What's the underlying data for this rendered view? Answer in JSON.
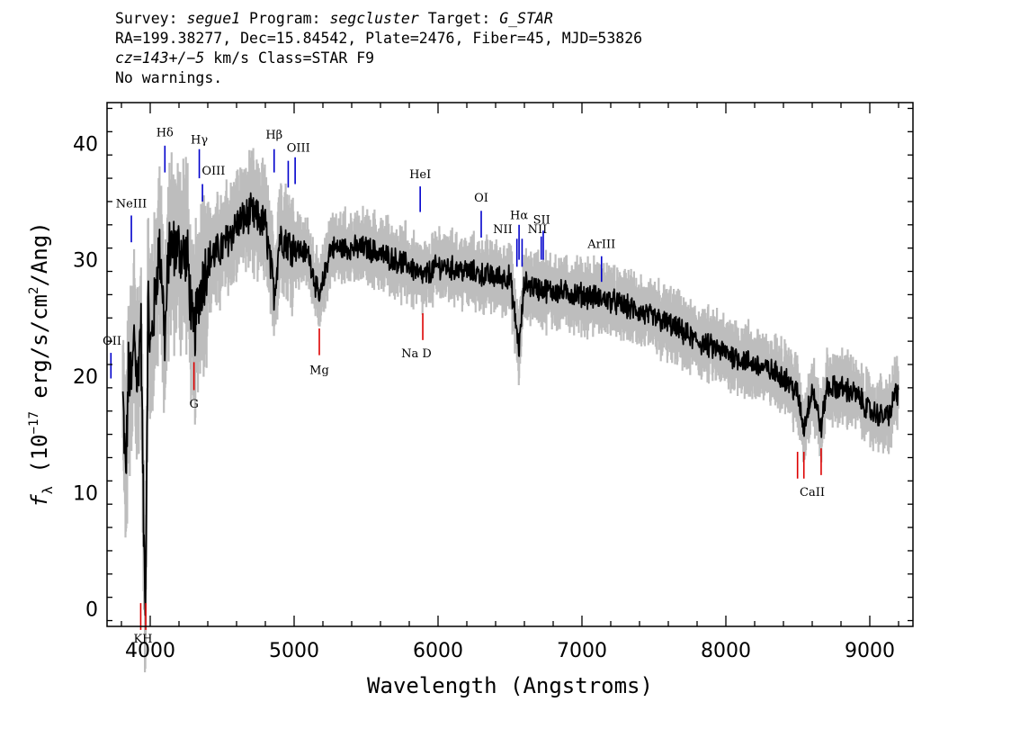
{
  "header": {
    "line1": {
      "survey_label": "Survey: ",
      "survey": "segue1",
      "program_label": " Program: ",
      "program": "segcluster",
      "target_label": " Target: ",
      "target": "G_STAR"
    },
    "line2": "RA=199.38277, Dec=15.84542, Plate=2476, Fiber=45, MJD=53826",
    "line3": {
      "cz": "cz=143+/−5",
      "rest": " km/s Class=STAR F9"
    },
    "line4": "No warnings."
  },
  "chart_data": {
    "type": "line",
    "xlabel": "Wavelength (Angstroms)",
    "ylabel": "f_λ (10^-17 erg/s/cm^2/Ang)",
    "ylabel_parts": {
      "f": "f",
      "lambda": "λ",
      "pre": " (10",
      "exp17": "−17",
      "mid": " erg/s/cm",
      "exp2": "2",
      "post": "/Ang)"
    },
    "xlim": [
      3700,
      9300
    ],
    "ylim": [
      -1.5,
      43.5
    ],
    "xticks": [
      4000,
      5000,
      6000,
      7000,
      8000,
      9000
    ],
    "yticks": [
      0,
      10,
      20,
      30,
      40
    ],
    "xtick_labels": [
      "4000",
      "5000",
      "6000",
      "7000",
      "8000",
      "9000"
    ],
    "ytick_labels": [
      "0",
      "10",
      "20",
      "30",
      "40"
    ],
    "colors": {
      "flux": "#000000",
      "error_band": "#bdbdbd",
      "emission": "#0000cc",
      "absorption": "#dd0000"
    },
    "spectrum_keypoints": [
      [
        3810,
        18
      ],
      [
        3830,
        11
      ],
      [
        3850,
        21
      ],
      [
        3870,
        19
      ],
      [
        3890,
        24
      ],
      [
        3910,
        19
      ],
      [
        3935,
        25
      ],
      [
        3955,
        6
      ],
      [
        3968,
        1
      ],
      [
        3985,
        27
      ],
      [
        4000,
        22
      ],
      [
        4030,
        26
      ],
      [
        4060,
        31
      ],
      [
        4080,
        29
      ],
      [
        4102,
        23
      ],
      [
        4130,
        31
      ],
      [
        4200,
        31
      ],
      [
        4260,
        30
      ],
      [
        4300,
        23
      ],
      [
        4340,
        27
      ],
      [
        4400,
        30
      ],
      [
        4500,
        31
      ],
      [
        4600,
        33
      ],
      [
        4700,
        34
      ],
      [
        4800,
        33
      ],
      [
        4862,
        27
      ],
      [
        4900,
        32
      ],
      [
        5000,
        31
      ],
      [
        5100,
        30.5
      ],
      [
        5175,
        26.5
      ],
      [
        5250,
        31
      ],
      [
        5400,
        31
      ],
      [
        5500,
        31
      ],
      [
        5600,
        30.5
      ],
      [
        5700,
        30
      ],
      [
        5800,
        29.5
      ],
      [
        5895,
        28.5
      ],
      [
        6000,
        29.5
      ],
      [
        6200,
        29
      ],
      [
        6400,
        28.5
      ],
      [
        6500,
        28.5
      ],
      [
        6563,
        22.3
      ],
      [
        6600,
        28
      ],
      [
        6700,
        27.5
      ],
      [
        6800,
        27.3
      ],
      [
        7000,
        27
      ],
      [
        7200,
        26.5
      ],
      [
        7400,
        25.5
      ],
      [
        7600,
        24.5
      ],
      [
        7800,
        23
      ],
      [
        8000,
        22
      ],
      [
        8200,
        21
      ],
      [
        8400,
        20
      ],
      [
        8498,
        18.5
      ],
      [
        8542,
        15.5
      ],
      [
        8600,
        19
      ],
      [
        8662,
        15.5
      ],
      [
        8700,
        19
      ],
      [
        8800,
        19
      ],
      [
        8900,
        18.5
      ],
      [
        9000,
        17
      ],
      [
        9100,
        16.5
      ],
      [
        9150,
        17
      ],
      [
        9180,
        19
      ],
      [
        9200,
        18
      ]
    ],
    "emission_lines": [
      {
        "label": "NeIII",
        "x": 3869,
        "y_top": 33.8,
        "y_bottom": 31.5,
        "label_x": 3869,
        "label_y": 34.5
      },
      {
        "label": "OII",
        "x": 3727,
        "y_top": 22,
        "y_bottom": 19.8,
        "label_x": 3735,
        "label_y": 22.7
      },
      {
        "label": "Hδ",
        "x": 4102,
        "y_top": 39.8,
        "y_bottom": 37.5,
        "label_x": 4102,
        "label_y": 40.6
      },
      {
        "label": "Hγ",
        "x": 4341,
        "y_top": 39.5,
        "y_bottom": 37,
        "label_x": 4341,
        "label_y": 40
      },
      {
        "label": "OIII",
        "x": 4363,
        "y_top": 36.5,
        "y_bottom": 35,
        "label_x": 4440,
        "label_y": 37.3
      },
      {
        "label": "Hβ",
        "x": 4861,
        "y_top": 39.5,
        "y_bottom": 37.5,
        "label_x": 4861,
        "label_y": 40.4
      },
      {
        "label": "OIII",
        "x": 4959,
        "y_top": 38.5,
        "y_bottom": 36.2,
        "label_x": 5030,
        "label_y": 39.3
      },
      {
        "label": "",
        "x": 5007,
        "y_top": 38.8,
        "y_bottom": 36.5
      },
      {
        "label": "HeI",
        "x": 5876,
        "y_top": 36.3,
        "y_bottom": 34.1,
        "label_x": 5876,
        "label_y": 37
      },
      {
        "label": "OI",
        "x": 6300,
        "y_top": 34.2,
        "y_bottom": 31.9,
        "label_x": 6300,
        "label_y": 35
      },
      {
        "label": "NII",
        "x": 6548,
        "y_top": 31.8,
        "y_bottom": 29.4,
        "label_x": 6450,
        "label_y": 32.3
      },
      {
        "label": "Hα",
        "x": 6563,
        "y_top": 33,
        "y_bottom": 30,
        "label_x": 6563,
        "label_y": 33.5
      },
      {
        "label": "",
        "x": 6584,
        "y_top": 31.8,
        "y_bottom": 29.4
      },
      {
        "label": "NII",
        "x": 6717,
        "y_top": 32,
        "y_bottom": 30,
        "label_x": 6690,
        "label_y": 32.3
      },
      {
        "label": "SII",
        "x": 6731,
        "y_top": 32.5,
        "y_bottom": 30,
        "label_x": 6720,
        "label_y": 33.1
      },
      {
        "label": "ArIII",
        "x": 7136,
        "y_top": 30.3,
        "y_bottom": 28.1,
        "label_x": 7136,
        "label_y": 31
      }
    ],
    "absorption_lines": [
      {
        "label": "K",
        "x": 3934,
        "y_top": 0.5,
        "y_bottom": -1.8
      },
      {
        "label": "H",
        "x": 3969,
        "y_top": 0.5,
        "y_bottom": -1.8
      },
      {
        "label": "G",
        "x": 4304,
        "y_top": 21.2,
        "y_bottom": 18.8,
        "label_x": 4304,
        "label_y": 17.3
      },
      {
        "label": "Mg",
        "x": 5175,
        "y_top": 24.1,
        "y_bottom": 21.8,
        "label_x": 5175,
        "label_y": 20.2
      },
      {
        "label": "Na D",
        "x": 5894,
        "y_top": 25.4,
        "y_bottom": 23.1,
        "label_x": 5850,
        "label_y": 21.6
      },
      {
        "label": "",
        "x": 8498,
        "y_top": 13.5,
        "y_bottom": 11.2
      },
      {
        "label": "CaII",
        "x": 8542,
        "y_top": 13.5,
        "y_bottom": 11.2,
        "label_x": 8600,
        "label_y": 9.7
      },
      {
        "label": "",
        "x": 8662,
        "y_top": 13.8,
        "y_bottom": 11.5
      }
    ],
    "kh_label": {
      "text": "KH",
      "x": 3950,
      "y": -2.9
    }
  }
}
